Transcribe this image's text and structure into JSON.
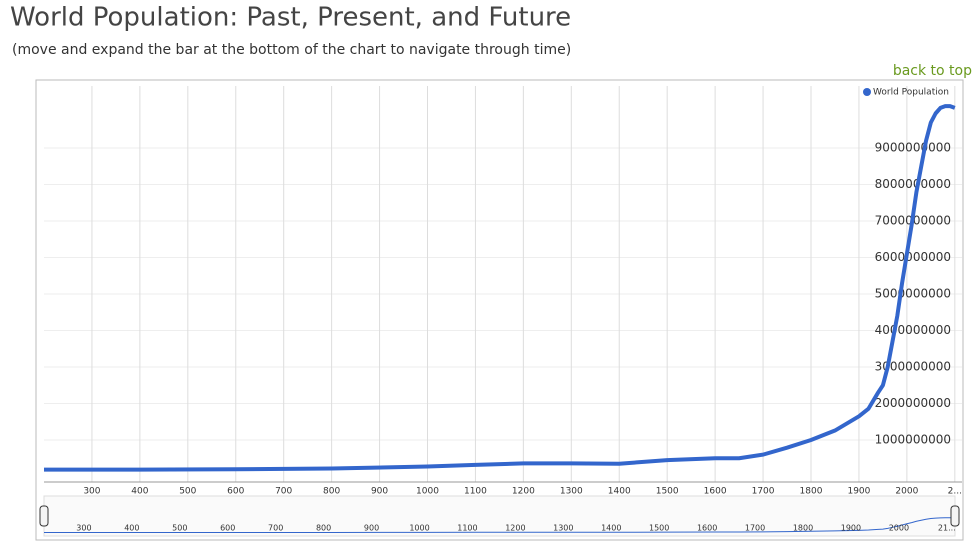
{
  "chart_data": {
    "type": "line",
    "title": "World Population: Past, Present, and Future",
    "subtitle": "(move and expand the bar at the bottom of the chart to navigate through time)",
    "link": "back to top",
    "x": [
      200,
      400,
      600,
      800,
      1000,
      1100,
      1200,
      1300,
      1400,
      1500,
      1600,
      1650,
      1700,
      1750,
      1800,
      1850,
      1900,
      1920,
      1940,
      1950,
      1960,
      1970,
      1980,
      1990,
      2000,
      2010,
      2020,
      2030,
      2040,
      2050,
      2060,
      2070,
      2080,
      2090,
      2100
    ],
    "series": [
      {
        "name": "World Population",
        "color": "#3366cc",
        "values": [
          190000000,
          190000000,
          200000000,
          220000000,
          275000000,
          320000000,
          360000000,
          360000000,
          350000000,
          450000000,
          500000000,
          500000000,
          600000000,
          790000000,
          1000000000,
          1260000000,
          1650000000,
          1860000000,
          2300000000,
          2500000000,
          3000000000,
          3700000000,
          4400000000,
          5300000000,
          6100000000,
          6900000000,
          7800000000,
          8500000000,
          9200000000,
          9700000000,
          9950000000,
          10100000000,
          10150000000,
          10150000000,
          10100000000
        ]
      }
    ],
    "xlim": [
      200,
      2115
    ],
    "ylim": [
      -150000000,
      10700000000
    ],
    "xticks": [
      300,
      400,
      500,
      600,
      700,
      800,
      900,
      1000,
      1100,
      1200,
      1300,
      1400,
      1500,
      1600,
      1700,
      1800,
      1900,
      2000,
      {
        "value": 2100,
        "label": "2..."
      }
    ],
    "yticks": [
      1000000000,
      2000000000,
      3000000000,
      4000000000,
      5000000000,
      6000000000,
      7000000000,
      8000000000,
      9000000000
    ],
    "navigator_ticks": [
      300,
      400,
      500,
      600,
      700,
      800,
      900,
      1000,
      1100,
      1200,
      1300,
      1400,
      1500,
      1600,
      1700,
      1800,
      1900,
      2000,
      {
        "value": 2100,
        "label": "21..."
      }
    ],
    "grid": true,
    "legend": "top-right"
  }
}
